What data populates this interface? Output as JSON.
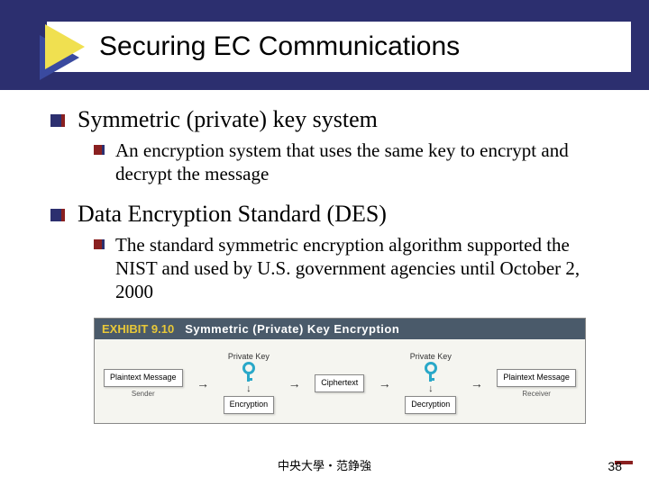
{
  "slide": {
    "title": "Securing EC Communications",
    "footer": "中央大學・范錚強",
    "page_number": "38"
  },
  "bullets": [
    {
      "main": "Symmetric (private) key system",
      "sub": "An encryption system that uses the same key to encrypt and decrypt the message"
    },
    {
      "main": "Data Encryption Standard (DES)",
      "sub": "The standard symmetric encryption algorithm supported the NIST and used by U.S. government agencies until October 2, 2000"
    }
  ],
  "exhibit": {
    "number": "EXHIBIT 9.10",
    "title": "Symmetric (Private) Key Encryption",
    "key_label": "Private Key",
    "plaintext": "Plaintext\nMessage",
    "sender": "Sender",
    "encryption": "Encryption",
    "ciphertext": "Ciphertext",
    "decryption": "Decryption",
    "receiver": "Receiver"
  },
  "colors": {
    "header_bg": "#2c2f6f",
    "accent_red": "#8a2020",
    "key_blue": "#2aa8c8",
    "exhibit_header": "#4a5a6a",
    "exhibit_num": "#e8c838"
  }
}
